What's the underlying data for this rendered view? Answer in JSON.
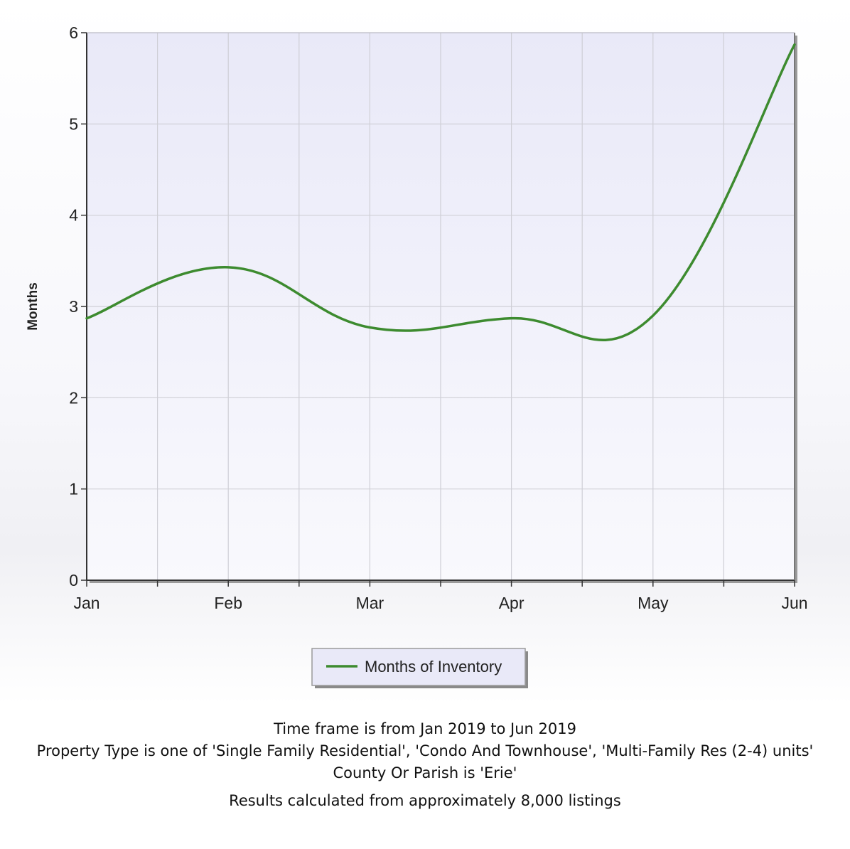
{
  "chart_data": {
    "type": "line",
    "categories": [
      "Jan",
      "Feb",
      "Mar",
      "Apr",
      "May",
      "Jun"
    ],
    "ylabel": "Months",
    "ylim": [
      0,
      6
    ],
    "yticks": [
      "0",
      "1",
      "2",
      "3",
      "4",
      "5",
      "6"
    ],
    "grid": true,
    "legend_position": "bottom-center",
    "series": [
      {
        "name": "Months of Inventory",
        "color": "#3d8b2f",
        "values": [
          2.87,
          3.43,
          2.77,
          2.87,
          2.9,
          5.87
        ]
      }
    ]
  },
  "notes": {
    "timeframe": "Time frame is from Jan 2019 to Jun 2019",
    "property_type": "Property Type is one of 'Single Family Residential', 'Condo And Townhouse', 'Multi-Family Res (2-4) units'",
    "county": "County Or Parish is 'Erie'",
    "results": "Results calculated from approximately 8,000 listings"
  }
}
